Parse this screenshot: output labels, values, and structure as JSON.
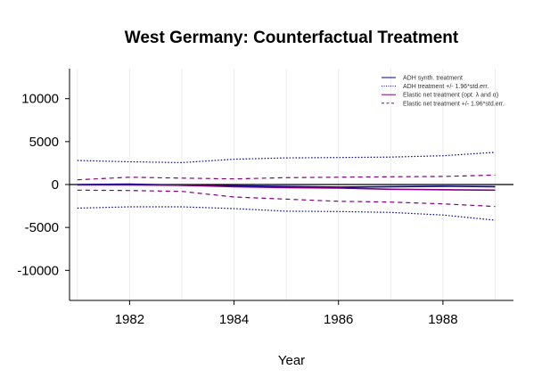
{
  "chart_data": {
    "type": "line",
    "title": "West Germany: Counterfactual Treatment",
    "xlabel": "Year",
    "ylabel": "",
    "xlim": [
      1980.85,
      1989.35
    ],
    "ylim": [
      -13500,
      13500
    ],
    "x_ticks": [
      1982,
      1984,
      1986,
      1988
    ],
    "x_tick_labels": [
      "1982",
      "1984",
      "1986",
      "1988"
    ],
    "y_ticks": [
      10000,
      5000,
      0,
      -5000,
      -10000
    ],
    "y_tick_labels": [
      "10000",
      "5000",
      "0",
      "-5000",
      "-10000"
    ],
    "grid": "vertical, light",
    "legend_position": "top-right",
    "reference_line": 0,
    "x": [
      1981,
      1982,
      1983,
      1984,
      1985,
      1986,
      1987,
      1988,
      1989
    ],
    "series": [
      {
        "name": "ADH synth. treatment",
        "color": "#00008b",
        "style": "solid",
        "values": [
          0,
          50,
          -80,
          -150,
          -230,
          -300,
          -250,
          -200,
          -250
        ]
      },
      {
        "name": "ADH treatment +/- 1.96*std.err.",
        "color": "#00008b",
        "style": "dotted",
        "values": [
          2800,
          2650,
          2550,
          2950,
          3100,
          3150,
          3200,
          3350,
          3750
        ]
      },
      {
        "name": "",
        "color": "#00008b",
        "style": "dotted",
        "values": [
          -2750,
          -2600,
          -2600,
          -2800,
          -3100,
          -3150,
          -3250,
          -3550,
          -4150
        ]
      },
      {
        "name": "Elastic net treatment (opt. λ and α)",
        "color": "#800080",
        "style": "solid",
        "values": [
          -50,
          -50,
          -80,
          -250,
          -350,
          -400,
          -550,
          -600,
          -650
        ]
      },
      {
        "name": "Elastic net treatment +/- 1.96*std.err.",
        "color": "#800080",
        "style": "dashed",
        "values": [
          550,
          850,
          750,
          650,
          800,
          850,
          900,
          950,
          1100
        ]
      },
      {
        "name": "",
        "color": "#800080",
        "style": "dashed",
        "values": [
          -650,
          -700,
          -800,
          -1450,
          -1700,
          -1950,
          -2050,
          -2250,
          -2550
        ]
      }
    ],
    "legend": [
      {
        "label": "ADH synth. treatment",
        "color": "#00008b",
        "style": "solid"
      },
      {
        "label": "ADH treatment +/- 1.96*std.err.",
        "color": "#00008b",
        "style": "dotted"
      },
      {
        "label": "Elastic net treatment (opt. λ and α)",
        "color": "#800080",
        "style": "solid"
      },
      {
        "label": "Elastic net treatment +/- 1.96*std.err.",
        "color": "#800080",
        "style": "dashed"
      }
    ]
  }
}
